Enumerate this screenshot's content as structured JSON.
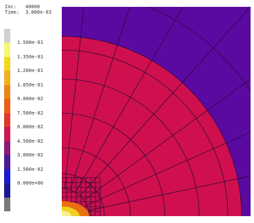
{
  "info": {
    "inc_label": "Inc:",
    "inc_value": "40000",
    "time_label": "Time:",
    "time_value": "3.000e-03"
  },
  "legend": {
    "labels": [
      "1.500e-01",
      "1.350e-01",
      "1.200e-01",
      "1.050e-01",
      "9.000e-02",
      "7.500e-02",
      "6.000e-02",
      "4.500e-02",
      "3.000e-02",
      "1.500e-02",
      "0.000e+00"
    ],
    "colors_top_to_bottom": [
      "#d0d0d0",
      "#f8f878",
      "#f0d820",
      "#f0b020",
      "#e88818",
      "#e86018",
      "#e03828",
      "#c81850",
      "#8a1a78",
      "#4a1a98",
      "#1a1ad0",
      "#1a1a90",
      "#7a7a7a"
    ]
  },
  "plot": {
    "background_color": "#5a0aa0",
    "disk_color": "#d0104e",
    "mesh_color": "#2a0838",
    "hotspot_colors": [
      "#f8f098",
      "#f0d020",
      "#e87010"
    ]
  }
}
